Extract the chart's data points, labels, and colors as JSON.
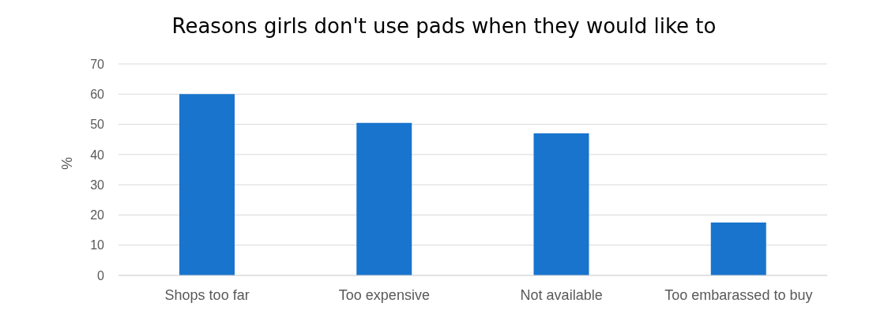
{
  "chart_data": {
    "type": "bar",
    "title": "Reasons girls don't use pads when they would like to",
    "ylabel": "%",
    "categories": [
      "Shops too far",
      "Too expensive",
      "Not available",
      "Too embarassed to buy"
    ],
    "values": [
      60,
      50.5,
      47,
      17.5
    ],
    "color": "#1874cd",
    "ylim": [
      0,
      70
    ],
    "yticks": [
      0,
      10,
      20,
      30,
      40,
      50,
      60,
      70
    ],
    "grid": "y"
  }
}
